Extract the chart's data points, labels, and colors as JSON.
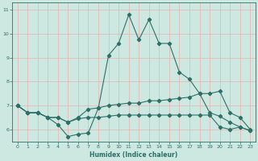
{
  "xlabel": "Humidex (Indice chaleur)",
  "bg_color": "#cce8e0",
  "plot_bg_color": "#cce8e0",
  "line_color": "#2d7068",
  "grid_color": "#e8b0b0",
  "spine_color": "#2d7068",
  "tick_color": "#2d7068",
  "xlim": [
    -0.5,
    23.5
  ],
  "ylim": [
    5.5,
    11.3
  ],
  "yticks": [
    6,
    7,
    8,
    9,
    10,
    11
  ],
  "xticks": [
    0,
    1,
    2,
    3,
    4,
    5,
    6,
    7,
    8,
    9,
    10,
    11,
    12,
    13,
    14,
    15,
    16,
    17,
    18,
    19,
    20,
    21,
    22,
    23
  ],
  "line1_x": [
    0,
    1,
    2,
    3,
    4,
    5,
    6,
    7,
    8,
    9,
    10,
    11,
    12,
    13,
    14,
    15,
    16,
    17,
    18,
    19,
    20,
    21,
    22,
    23
  ],
  "line1_y": [
    7.0,
    6.7,
    6.7,
    6.5,
    6.2,
    5.7,
    5.8,
    5.85,
    6.9,
    9.1,
    9.6,
    10.8,
    9.75,
    10.6,
    9.6,
    9.6,
    8.4,
    8.1,
    7.5,
    6.7,
    6.55,
    6.3,
    6.1,
    5.95
  ],
  "line2_x": [
    0,
    1,
    2,
    3,
    4,
    5,
    6,
    7,
    8,
    9,
    10,
    11,
    12,
    13,
    14,
    15,
    16,
    17,
    18,
    19,
    20,
    21,
    22,
    23
  ],
  "line2_y": [
    7.0,
    6.7,
    6.7,
    6.5,
    6.5,
    6.3,
    6.5,
    6.85,
    6.9,
    7.0,
    7.05,
    7.1,
    7.1,
    7.2,
    7.2,
    7.25,
    7.3,
    7.35,
    7.5,
    7.5,
    7.6,
    6.7,
    6.5,
    6.0
  ],
  "line3_x": [
    0,
    1,
    2,
    3,
    4,
    5,
    6,
    7,
    8,
    9,
    10,
    11,
    12,
    13,
    14,
    15,
    16,
    17,
    18,
    19,
    20,
    21,
    22,
    23
  ],
  "line3_y": [
    7.0,
    6.7,
    6.7,
    6.5,
    6.5,
    6.3,
    6.45,
    6.5,
    6.5,
    6.55,
    6.6,
    6.6,
    6.6,
    6.6,
    6.6,
    6.6,
    6.6,
    6.6,
    6.6,
    6.6,
    6.1,
    6.0,
    6.1,
    5.95
  ]
}
